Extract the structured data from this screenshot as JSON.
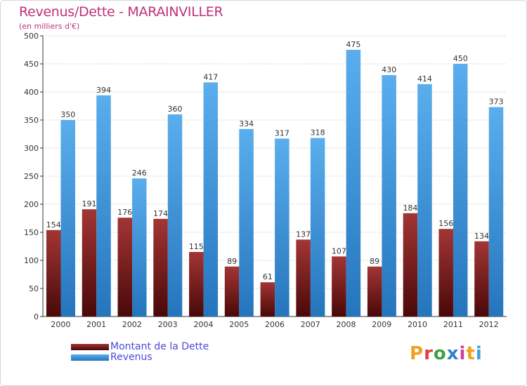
{
  "header": {
    "title": "Revenus/Dette - MARAINVILLER",
    "subtitle": "(en milliers d'€)"
  },
  "logo": {
    "text": "Proxiti",
    "colors": [
      "#f0a020",
      "#e04040",
      "#40a040",
      "#3080d0",
      "#d040a0",
      "#f0a020",
      "#40a0e0"
    ]
  },
  "chart_data": {
    "type": "bar",
    "title": "Revenus/Dette - MARAINVILLER",
    "ylabel": "",
    "xlabel": "",
    "categories": [
      "2000",
      "2001",
      "2002",
      "2003",
      "2004",
      "2005",
      "2006",
      "2007",
      "2008",
      "2009",
      "2010",
      "2011",
      "2012"
    ],
    "ylim": [
      0,
      500
    ],
    "yticks": [
      0,
      50,
      100,
      150,
      200,
      250,
      300,
      350,
      400,
      450,
      500
    ],
    "grid": true,
    "legend_position": "bottom-left",
    "series": [
      {
        "name": "Montant de la Dette",
        "color": "#7a1a1a",
        "values": [
          154,
          191,
          176,
          174,
          115,
          89,
          61,
          137,
          107,
          89,
          184,
          156,
          134
        ]
      },
      {
        "name": "Revenus",
        "color": "#3a8fd8",
        "values": [
          350,
          394,
          246,
          360,
          417,
          334,
          317,
          318,
          475,
          430,
          414,
          450,
          373
        ]
      }
    ]
  }
}
